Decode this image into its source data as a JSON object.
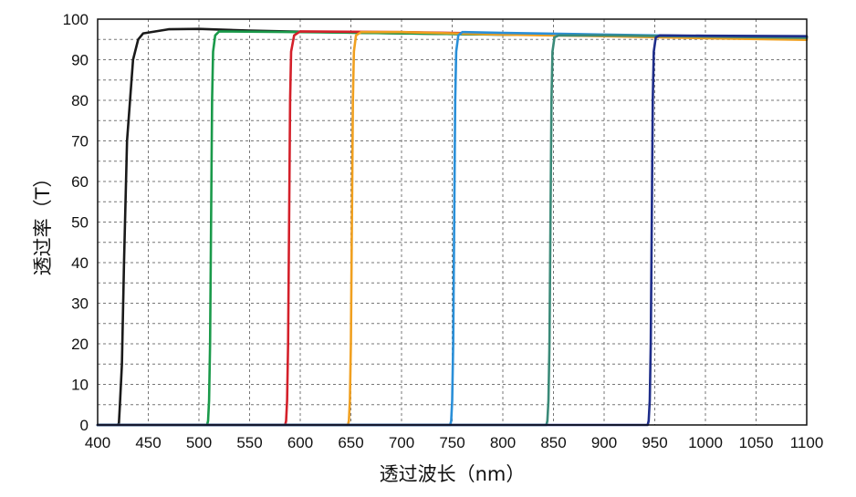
{
  "chart_data": {
    "type": "line",
    "title": "",
    "xlabel": "透过波长（nm）",
    "ylabel": "透过率（T）",
    "xlim": [
      400,
      1100
    ],
    "ylim": [
      0,
      100
    ],
    "x_ticks": [
      400,
      450,
      500,
      550,
      600,
      650,
      700,
      750,
      800,
      850,
      900,
      950,
      1000,
      1050,
      1100
    ],
    "y_ticks": [
      0,
      10,
      20,
      30,
      40,
      50,
      60,
      70,
      80,
      90,
      100
    ],
    "grid": true,
    "legend": "none",
    "series": [
      {
        "color": "#1a1a1a",
        "points": [
          [
            400,
            0
          ],
          [
            420,
            0
          ],
          [
            421,
            0.5
          ],
          [
            422,
            5
          ],
          [
            424,
            15
          ],
          [
            426,
            40
          ],
          [
            429,
            70
          ],
          [
            435,
            90
          ],
          [
            440,
            95
          ],
          [
            445,
            96.5
          ],
          [
            470,
            97.5
          ],
          [
            500,
            97.6
          ],
          [
            550,
            97.2
          ],
          [
            600,
            96.9
          ],
          [
            700,
            96.5
          ],
          [
            800,
            96.2
          ],
          [
            900,
            96
          ],
          [
            1000,
            95.8
          ],
          [
            1100,
            95.6
          ]
        ]
      },
      {
        "color": "#1a9a4a",
        "points": [
          [
            400,
            0
          ],
          [
            508,
            0
          ],
          [
            509,
            1
          ],
          [
            510,
            6
          ],
          [
            511,
            20
          ],
          [
            512,
            50
          ],
          [
            513,
            80
          ],
          [
            514,
            92
          ],
          [
            516,
            96
          ],
          [
            520,
            97
          ],
          [
            600,
            96.8
          ],
          [
            700,
            96.5
          ],
          [
            800,
            96.2
          ],
          [
            900,
            96
          ],
          [
            1000,
            95.8
          ],
          [
            1100,
            95.5
          ]
        ]
      },
      {
        "color": "#d4202a",
        "points": [
          [
            400,
            0
          ],
          [
            585,
            0
          ],
          [
            586,
            1
          ],
          [
            587,
            6
          ],
          [
            588,
            20
          ],
          [
            589,
            50
          ],
          [
            590,
            80
          ],
          [
            591,
            92
          ],
          [
            594,
            96
          ],
          [
            600,
            97
          ],
          [
            700,
            96.8
          ],
          [
            800,
            96.4
          ],
          [
            900,
            96
          ],
          [
            1000,
            95.6
          ],
          [
            1100,
            95.2
          ]
        ]
      },
      {
        "color": "#f0a020",
        "points": [
          [
            400,
            0
          ],
          [
            647,
            0
          ],
          [
            648,
            1
          ],
          [
            649,
            6
          ],
          [
            650,
            20
          ],
          [
            651,
            50
          ],
          [
            652,
            80
          ],
          [
            653,
            92
          ],
          [
            655,
            96
          ],
          [
            660,
            96.8
          ],
          [
            700,
            96.8
          ],
          [
            800,
            96.2
          ],
          [
            900,
            95.8
          ],
          [
            1000,
            95.3
          ],
          [
            1100,
            94.9
          ]
        ]
      },
      {
        "color": "#2a8fd8",
        "points": [
          [
            400,
            0
          ],
          [
            748,
            0
          ],
          [
            749,
            1
          ],
          [
            750,
            6
          ],
          [
            751,
            20
          ],
          [
            752,
            50
          ],
          [
            753,
            80
          ],
          [
            754,
            92
          ],
          [
            756,
            96
          ],
          [
            760,
            96.8
          ],
          [
            800,
            96.6
          ],
          [
            900,
            96.2
          ],
          [
            1000,
            95.8
          ],
          [
            1100,
            95.5
          ]
        ]
      },
      {
        "color": "#3a8a78",
        "points": [
          [
            400,
            0
          ],
          [
            843,
            0
          ],
          [
            844,
            1
          ],
          [
            845,
            6
          ],
          [
            846,
            20
          ],
          [
            847,
            50
          ],
          [
            848,
            80
          ],
          [
            849,
            92
          ],
          [
            851,
            95.5
          ],
          [
            855,
            96
          ],
          [
            900,
            96
          ],
          [
            1000,
            95.7
          ],
          [
            1100,
            95.4
          ]
        ]
      },
      {
        "color": "#1e2d8a",
        "points": [
          [
            400,
            0
          ],
          [
            943,
            0
          ],
          [
            944,
            1
          ],
          [
            945,
            6
          ],
          [
            946,
            20
          ],
          [
            947,
            50
          ],
          [
            948,
            80
          ],
          [
            949,
            92
          ],
          [
            951,
            95.5
          ],
          [
            955,
            96
          ],
          [
            1000,
            95.9
          ],
          [
            1100,
            95.8
          ]
        ]
      }
    ]
  }
}
